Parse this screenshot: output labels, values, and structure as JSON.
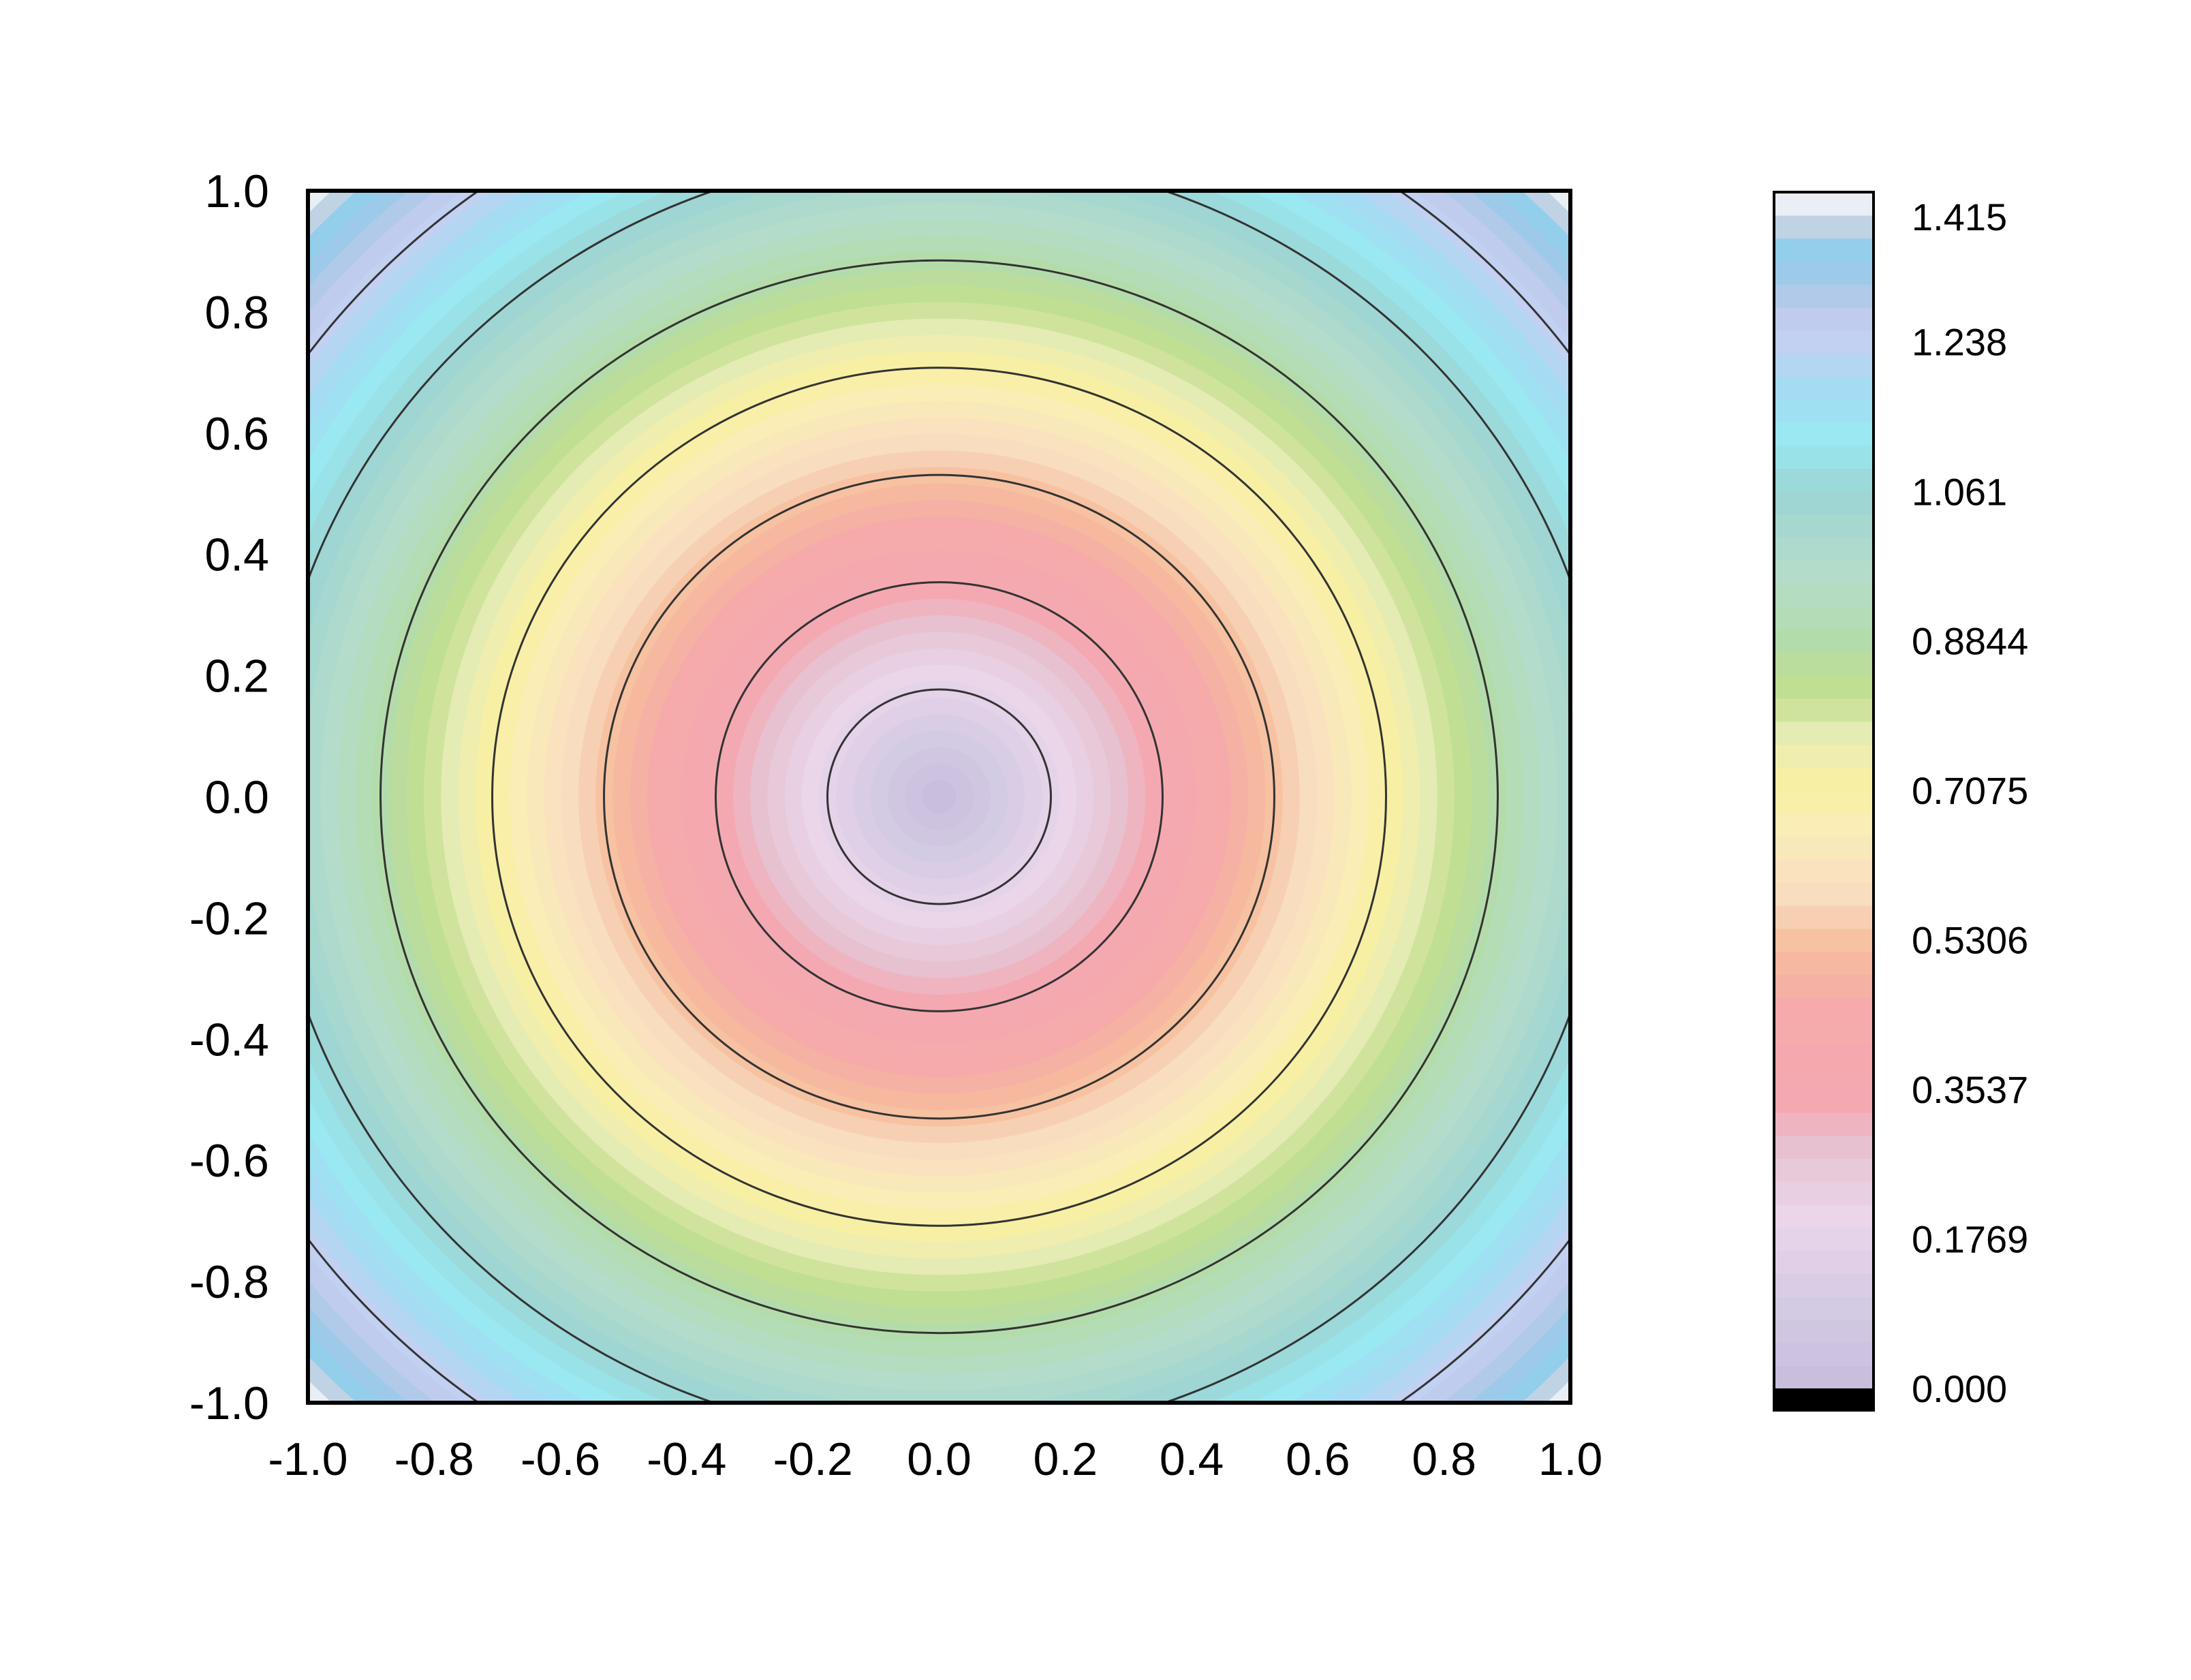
{
  "chart_data": {
    "type": "heatmap",
    "subtype": "filled-contour",
    "function": "z = sqrt(x^2 + y^2)",
    "title": "",
    "xlabel": "",
    "ylabel": "",
    "xlim": [
      -1.0,
      1.0
    ],
    "ylim": [
      -1.0,
      1.0
    ],
    "x_ticks": [
      -1.0,
      -0.8,
      -0.6,
      -0.4,
      -0.2,
      0.0,
      0.2,
      0.4,
      0.6,
      0.8,
      1.0
    ],
    "x_tick_labels": [
      "-1.0",
      "-0.8",
      "-0.6",
      "-0.4",
      "-0.2",
      "0.0",
      "0.2",
      "0.4",
      "0.6",
      "0.8",
      "1.0"
    ],
    "y_ticks": [
      1.0,
      0.8,
      0.6,
      0.4,
      0.2,
      0.0,
      -0.2,
      -0.4,
      -0.6,
      -0.8,
      -1.0
    ],
    "y_tick_labels": [
      "1.0",
      "0.8",
      "0.6",
      "0.4",
      "0.2",
      "0.0",
      "-0.2",
      "-0.4",
      "-0.6",
      "-0.8",
      "-1.0"
    ],
    "grid": false,
    "z_range": [
      0.0,
      1.415
    ],
    "contour_lines_z": [
      0.177,
      0.354,
      0.531,
      0.708,
      0.885,
      1.062,
      1.238
    ],
    "band_count": 52,
    "colormap_stops": [
      {
        "z": 0.0,
        "color": "#c8bcdc"
      },
      {
        "z": 0.1,
        "color": "#d4cbe4"
      },
      {
        "z": 0.2,
        "color": "#ead6ea"
      },
      {
        "z": 0.28,
        "color": "#e6c4d3"
      },
      {
        "z": 0.34,
        "color": "#f4a9b2"
      },
      {
        "z": 0.45,
        "color": "#f6aaaa"
      },
      {
        "z": 0.52,
        "color": "#f6bc9c"
      },
      {
        "z": 0.58,
        "color": "#f8dcc0"
      },
      {
        "z": 0.66,
        "color": "#faecb8"
      },
      {
        "z": 0.71,
        "color": "#faf1a0"
      },
      {
        "z": 0.77,
        "color": "#e8ecb8"
      },
      {
        "z": 0.82,
        "color": "#c4df8e"
      },
      {
        "z": 0.88,
        "color": "#b4dca8"
      },
      {
        "z": 0.97,
        "color": "#b4dccc"
      },
      {
        "z": 1.06,
        "color": "#9cd4d4"
      },
      {
        "z": 1.12,
        "color": "#98eaf0"
      },
      {
        "z": 1.18,
        "color": "#a4dcf4"
      },
      {
        "z": 1.25,
        "color": "#c8cef0"
      },
      {
        "z": 1.31,
        "color": "#a8c8e8"
      },
      {
        "z": 1.34,
        "color": "#88cdec"
      },
      {
        "z": 1.38,
        "color": "#c8d4e4"
      },
      {
        "z": 1.415,
        "color": "#ffffff"
      }
    ],
    "colorbar": {
      "ticks": [
        1.415,
        1.238,
        1.061,
        0.8844,
        0.7075,
        0.5306,
        0.3537,
        0.1769,
        0.0
      ],
      "tick_labels": [
        "1.415",
        "1.238",
        "1.061",
        "0.8844",
        "0.7075",
        "0.5306",
        "0.3537",
        "0.1769",
        "0.000"
      ],
      "position": "right",
      "below_min_color": "#000000"
    }
  }
}
